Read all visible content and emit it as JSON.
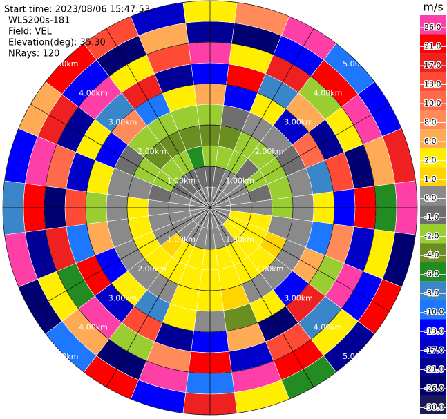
{
  "header": {
    "start_time": "Start time: 2023/08/06 15:47:53",
    "instrument": "WLS200s-181",
    "field": "Field: VEL",
    "elevation": "Elevation(deg): 35.30",
    "nrays": "NRays: 120"
  },
  "chart_data": {
    "type": "ppi",
    "rings": [
      {
        "value": 1,
        "label": "1.00km"
      },
      {
        "value": 2,
        "label": "2.00km"
      },
      {
        "value": 3,
        "label": "3.00km"
      },
      {
        "value": 4,
        "label": "4.00km"
      },
      {
        "value": 5,
        "label": "5.00km"
      }
    ],
    "values": [
      [
        0,
        -1,
        -2,
        -4,
        -2,
        6,
        -13,
        26,
        -21,
        2
      ],
      [
        0,
        -1,
        -2,
        -4,
        -1,
        -13,
        21,
        2,
        -26,
        8
      ],
      [
        0,
        0,
        -2,
        -2,
        0,
        2,
        -8,
        17,
        -13,
        26
      ],
      [
        0,
        0,
        -1,
        -2,
        0,
        -17,
        6,
        -2,
        21,
        -10
      ],
      [
        0,
        0,
        -2,
        -2,
        -1,
        10,
        -21,
        2,
        26,
        -13
      ],
      [
        0,
        0,
        -1,
        -2,
        0,
        -8,
        13,
        -26,
        6,
        17
      ],
      [
        0,
        0,
        0,
        -2,
        0,
        2,
        -13,
        21,
        -6,
        26
      ],
      [
        0,
        2,
        2,
        0,
        0,
        -10,
        8,
        -17,
        2,
        -26
      ],
      [
        0,
        2,
        2,
        1,
        0,
        6,
        -2,
        26,
        -13,
        21
      ],
      [
        0,
        2,
        2,
        2,
        0,
        -13,
        17,
        -8,
        2,
        -21
      ],
      [
        0,
        0,
        2,
        2,
        0,
        2,
        -26,
        13,
        21,
        -6
      ],
      [
        0,
        0,
        2,
        2,
        1,
        -4,
        6,
        -17,
        26,
        2
      ],
      [
        0,
        0,
        2,
        2,
        2,
        0,
        -13,
        21,
        -10,
        17
      ],
      [
        0,
        0,
        2,
        2,
        2,
        2,
        -21,
        8,
        26,
        -13
      ],
      [
        0,
        0,
        2,
        2,
        0,
        -8,
        13,
        -2,
        -26,
        21
      ],
      [
        0,
        0,
        1,
        2,
        0,
        2,
        -17,
        26,
        6,
        -10
      ],
      [
        0,
        0,
        0,
        2,
        0,
        -13,
        21,
        -6,
        2,
        -26
      ],
      [
        0,
        0,
        0,
        2,
        0,
        6,
        -10,
        17,
        -21,
        26
      ],
      [
        0,
        0,
        0,
        2,
        0,
        -2,
        13,
        -26,
        21,
        -8
      ],
      [
        0,
        0,
        -1,
        0,
        0,
        2,
        -17,
        10,
        26,
        -13
      ],
      [
        0,
        -1,
        -2,
        -2,
        -1,
        -13,
        2,
        -21,
        17,
        6
      ],
      [
        0,
        -1,
        -2,
        -4,
        -2,
        8,
        -8,
        26,
        -13,
        21
      ],
      [
        0,
        -1,
        -2,
        -4,
        -2,
        -10,
        17,
        2,
        -26,
        13
      ],
      [
        0,
        -1,
        -6,
        -4,
        -2,
        2,
        -21,
        13,
        6,
        -17
      ]
    ],
    "colorbar": {
      "label": "m/s",
      "ticks": [
        {
          "value": 26,
          "label": "26.0"
        },
        {
          "value": 21,
          "label": "21.0"
        },
        {
          "value": 17,
          "label": "17.0"
        },
        {
          "value": 13,
          "label": "13.0"
        },
        {
          "value": 10,
          "label": "10.0"
        },
        {
          "value": 8,
          "label": "8.0"
        },
        {
          "value": 6,
          "label": "6.0"
        },
        {
          "value": 2,
          "label": "2.0"
        },
        {
          "value": 1,
          "label": "1.0"
        },
        {
          "value": 0,
          "label": "0.0"
        },
        {
          "value": -1,
          "label": "-1.0"
        },
        {
          "value": -2,
          "label": "-2.0"
        },
        {
          "value": -4,
          "label": "-4.0"
        },
        {
          "value": -6,
          "label": "-6.0"
        },
        {
          "value": -8,
          "label": "-8.0"
        },
        {
          "value": -10,
          "label": "-10.0"
        },
        {
          "value": -13,
          "label": "-13.0"
        },
        {
          "value": -17,
          "label": "-17.0"
        },
        {
          "value": -21,
          "label": "-21.0"
        },
        {
          "value": -26,
          "label": "-26.0"
        },
        {
          "value": -30,
          "label": "-30.0"
        }
      ],
      "colors": [
        "#ff3fa8",
        "#ff0000",
        "#ee2020",
        "#ff4a36",
        "#ff6a4a",
        "#ff8a5a",
        "#ffaa55",
        "#ffee00",
        "#ffd400",
        "#8a8a8a",
        "#6e6e6e",
        "#9acd32",
        "#6b8e23",
        "#228b22",
        "#3a86c8",
        "#1e78ff",
        "#0000ff",
        "#0000c8",
        "#000096",
        "#000070",
        "#1a1a5a"
      ]
    }
  }
}
